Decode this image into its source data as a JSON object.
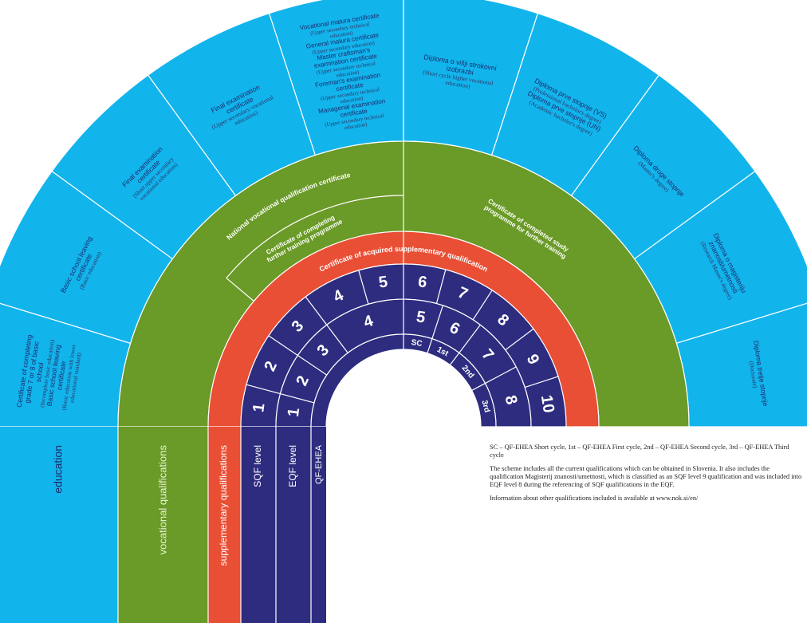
{
  "sectors": [
    {
      "items": [
        {
          "title": "Certificate of completing grade 7 or 8 of basic school",
          "note": "(Incomplete basic education)"
        },
        {
          "title": "Basic school leaving certificate",
          "note": "(Basic education with lower educational standard)"
        }
      ]
    },
    {
      "items": [
        {
          "title": "Basic school leaving certificate",
          "note": "(Basic education)"
        }
      ]
    },
    {
      "items": [
        {
          "title": "Final examination certificate",
          "note": "(Short upper secondary vocational education)"
        }
      ]
    },
    {
      "items": [
        {
          "title": "Final examination certificate",
          "note": "(Upper secondary vocational education)"
        }
      ]
    },
    {
      "items": [
        {
          "title": "Vocational matura certificate",
          "note": "(Upper secondary technical education)"
        },
        {
          "title": "General matura certificate",
          "note": "(Upper secondary education)"
        },
        {
          "title": "Master craftsman's examination certificate",
          "note": "(Upper secondary technical education)"
        },
        {
          "title": "Foreman's examination certificate",
          "note": "(Upper secondary technical education)"
        },
        {
          "title": "Managerial examination certificate",
          "note": "(Upper secondary technical education)"
        }
      ]
    },
    {
      "items": [
        {
          "title": "Diploma o višji strokovni izobrazbi",
          "note": "(Short cycle higher vocational education)"
        }
      ]
    },
    {
      "items": [
        {
          "title": "Diploma prve stopnje (VS)",
          "note": "(Professional bachelor's degree)"
        },
        {
          "title": "Diploma prve stopnje (UN)",
          "note": "(Academic bachelor's degree)"
        }
      ]
    },
    {
      "items": [
        {
          "title": "Diploma druge stopnje",
          "note": "(Master's degree)"
        }
      ]
    },
    {
      "items": [
        {
          "title": "Diploma o magisteriju znanosti/umetnosti",
          "note": "(Research Master's degree)"
        }
      ]
    },
    {
      "items": [
        {
          "title": "Diploma tretje stopnje",
          "note": "(Doctorate)"
        }
      ]
    }
  ],
  "vocational": {
    "national": "National vocational qualification certificate",
    "further_training": "Certificate of completing further training programme",
    "study_programme": "Certificate of completed study programme for further training"
  },
  "supplementary": "Certificate of acquired supplementary qualification",
  "sqf_levels": [
    "1",
    "2",
    "3",
    "4",
    "5",
    "6",
    "7",
    "8",
    "9",
    "10"
  ],
  "eqf_levels": [
    "1",
    "2",
    "3",
    "4",
    "5",
    "6",
    "7",
    "8"
  ],
  "qf_ehea": [
    "SC",
    "1st",
    "2nd",
    "3rd"
  ],
  "legend": {
    "education": "education",
    "vocational": "vocational qualifications",
    "supplementary": "supplementary qualifications",
    "sqf": "SQF level",
    "eqf": "EQF level",
    "qf_ehea": "QF-EHEA"
  },
  "notes": [
    "SC – QF-EHEA Short cycle, 1st – QF-EHEA First cycle, 2nd – QF-EHEA Second cycle, 3rd – QF-EHEA Third cycle",
    "The scheme includes all the current qualifications which can be obtained in Slovenia. It also includes the qualification Magisterij znanosti/umetnosti, which is classified as an SQF level 9 qualification and was included into EQF level 8 during the referencing of SQF qualifications in the EQF.",
    "Information about other qualifications included is available at www.nok.si/en/"
  ]
}
